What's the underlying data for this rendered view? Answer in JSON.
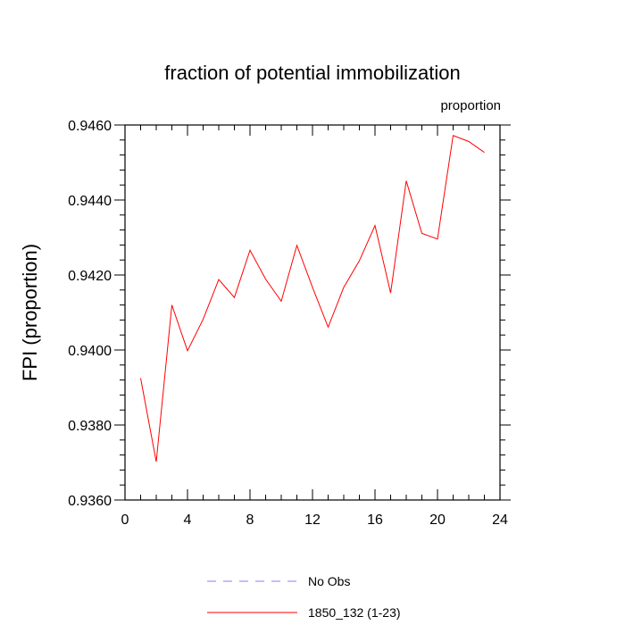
{
  "chart_data": {
    "type": "line",
    "title": "fraction of potential immobilization",
    "subtitle": "proportion",
    "xlabel": "",
    "ylabel": "FPI  (proportion)",
    "xlim": [
      0,
      24
    ],
    "ylim": [
      0.936,
      0.946
    ],
    "xticks": [
      "0",
      "4",
      "8",
      "12",
      "16",
      "20",
      "24"
    ],
    "yticks": [
      "0.9360",
      "0.9380",
      "0.9400",
      "0.9420",
      "0.9440",
      "0.9460"
    ],
    "grid": false,
    "legend_position": "bottom",
    "series": [
      {
        "name": "No Obs",
        "color": "#8080ff",
        "dash": "dashed",
        "x": [],
        "y": []
      },
      {
        "name": "1850_132 (1-23)",
        "color": "#ff0000",
        "dash": "solid",
        "x": [
          1,
          2,
          3,
          4,
          5,
          6,
          7,
          8,
          9,
          10,
          11,
          12,
          13,
          14,
          15,
          16,
          17,
          18,
          19,
          20,
          21,
          22,
          23
        ],
        "y": [
          0.93925,
          0.93702,
          0.9412,
          0.93998,
          0.94082,
          0.94188,
          0.9414,
          0.94266,
          0.94189,
          0.9413,
          0.94279,
          0.94167,
          0.94061,
          0.94167,
          0.94238,
          0.94332,
          0.94152,
          0.94451,
          0.94311,
          0.94296,
          0.94572,
          0.94556,
          0.94527
        ]
      }
    ]
  }
}
